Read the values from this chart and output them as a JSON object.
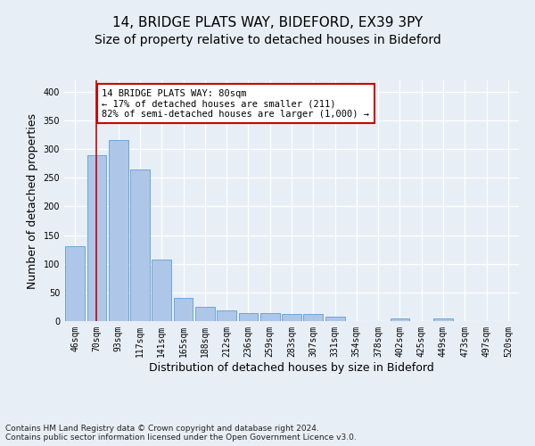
{
  "title_line1": "14, BRIDGE PLATS WAY, BIDEFORD, EX39 3PY",
  "title_line2": "Size of property relative to detached houses in Bideford",
  "xlabel": "Distribution of detached houses by size in Bideford",
  "ylabel": "Number of detached properties",
  "footnote": "Contains HM Land Registry data © Crown copyright and database right 2024.\nContains public sector information licensed under the Open Government Licence v3.0.",
  "bar_color": "#aec6e8",
  "bar_edge_color": "#5a9fd4",
  "categories": [
    "46sqm",
    "70sqm",
    "93sqm",
    "117sqm",
    "141sqm",
    "165sqm",
    "188sqm",
    "212sqm",
    "236sqm",
    "259sqm",
    "283sqm",
    "307sqm",
    "331sqm",
    "354sqm",
    "378sqm",
    "402sqm",
    "425sqm",
    "449sqm",
    "473sqm",
    "497sqm",
    "520sqm"
  ],
  "values": [
    130,
    290,
    315,
    265,
    108,
    40,
    25,
    18,
    14,
    14,
    12,
    12,
    8,
    0,
    0,
    5,
    0,
    5,
    0,
    0,
    0
  ],
  "ylim": [
    0,
    420
  ],
  "yticks": [
    0,
    50,
    100,
    150,
    200,
    250,
    300,
    350,
    400
  ],
  "property_bin_index": 1,
  "annotation_text": "14 BRIDGE PLATS WAY: 80sqm\n← 17% of detached houses are smaller (211)\n82% of semi-detached houses are larger (1,000) →",
  "annotation_box_color": "#ffffff",
  "annotation_box_edge_color": "#cc0000",
  "vline_x": 1.0,
  "vline_color": "#cc0000",
  "bg_color": "#e8eef5",
  "plot_bg_color": "#e8eef5",
  "grid_color": "#ffffff",
  "title_fontsize": 11,
  "subtitle_fontsize": 10,
  "axis_label_fontsize": 9,
  "tick_fontsize": 7,
  "footnote_fontsize": 6.5,
  "annotation_fontsize": 7.5
}
